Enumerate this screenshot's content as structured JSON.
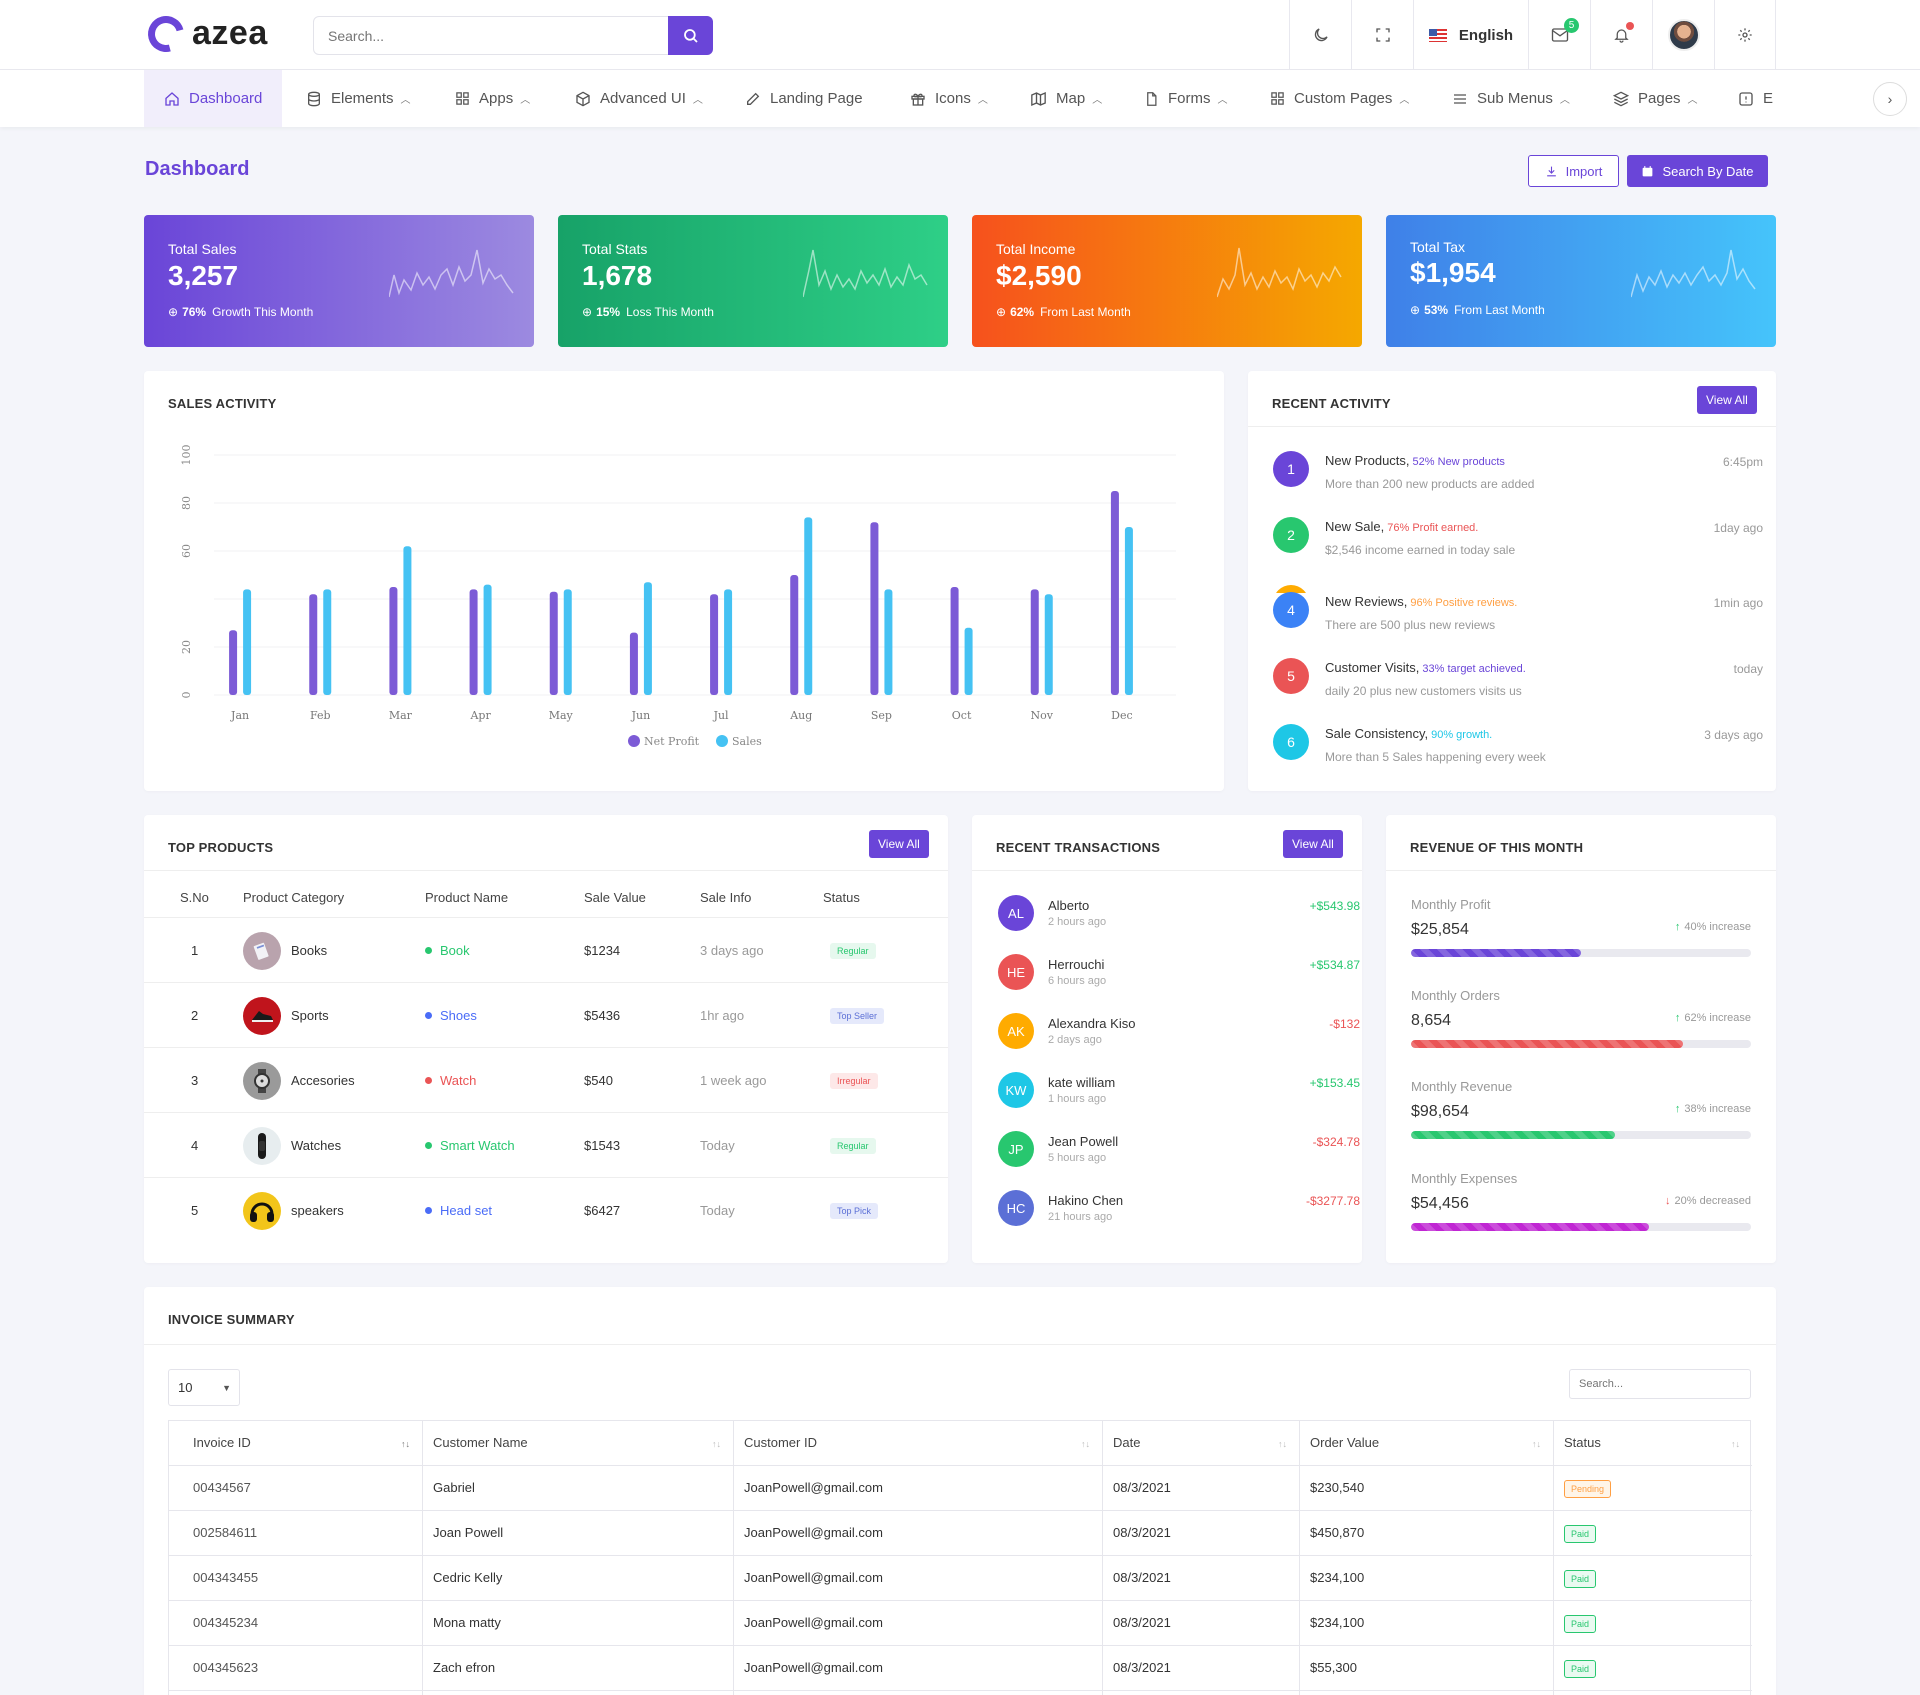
{
  "app": {
    "logo_text": "azea",
    "brand_color": "#6a45d8"
  },
  "header": {
    "search_placeholder": "Search...",
    "language": "English",
    "mail_count": "5",
    "icons": [
      "moon-icon",
      "fullscreen-icon",
      "flag-us-icon",
      "mail-icon",
      "bell-icon",
      "avatar",
      "gear-icon"
    ]
  },
  "nav": {
    "items": [
      {
        "label": "Dashboard",
        "icon": "home-icon"
      },
      {
        "label": "Elements",
        "icon": "database-icon"
      },
      {
        "label": "Apps",
        "icon": "grid-icon"
      },
      {
        "label": "Advanced UI",
        "icon": "box-icon"
      },
      {
        "label": "Landing Page",
        "icon": "edit-icon"
      },
      {
        "label": "Icons",
        "icon": "gift-icon"
      },
      {
        "label": "Map",
        "icon": "map-icon"
      },
      {
        "label": "Forms",
        "icon": "file-icon"
      },
      {
        "label": "Custom Pages",
        "icon": "grid-icon"
      },
      {
        "label": "Sub Menus",
        "icon": "menu-icon"
      },
      {
        "label": "Pages",
        "icon": "layers-icon"
      },
      {
        "label": "E",
        "icon": "info-icon"
      }
    ]
  },
  "page": {
    "title": "Dashboard",
    "import_label": "Import",
    "search_date_label": "Search By Date"
  },
  "stats": [
    {
      "label": "Total Sales",
      "value": "3,257",
      "pct": "76%",
      "note": "Growth This Month"
    },
    {
      "label": "Total Stats",
      "value": "1,678",
      "pct": "15%",
      "note": "Loss This Month"
    },
    {
      "label": "Total Income",
      "value": "$2,590",
      "pct": "62%",
      "note": "From Last Month"
    },
    {
      "label": "Total Tax",
      "value": "$1,954",
      "pct": "53%",
      "note": "From Last Month"
    }
  ],
  "sales_activity": {
    "title": "SALES ACTIVITY"
  },
  "chart_data": {
    "type": "bar",
    "categories": [
      "Jan",
      "Feb",
      "Mar",
      "Apr",
      "May",
      "Jun",
      "Jul",
      "Aug",
      "Sep",
      "Oct",
      "Nov",
      "Dec"
    ],
    "series": [
      {
        "name": "Net Profit",
        "color": "#7c5bd6",
        "values": [
          27,
          42,
          45,
          44,
          43,
          26,
          42,
          50,
          72,
          45,
          44,
          85
        ]
      },
      {
        "name": "Sales",
        "color": "#45c2f3",
        "values": [
          44,
          44,
          62,
          46,
          44,
          47,
          44,
          74,
          44,
          28,
          42,
          70
        ]
      }
    ],
    "yticks": [
      "0",
      "20",
      "60",
      "80",
      "100"
    ],
    "ylim": [
      0,
      100
    ],
    "legend": "bottom",
    "grid": true
  },
  "recent_activity": {
    "title": "RECENT ACTIVITY",
    "view_all": "View All",
    "items": [
      {
        "num": "1",
        "title": "New Products,",
        "highlight": "52% New products",
        "sub": "More than 200 new products are added",
        "time": "6:45pm",
        "color": "#6a45d8",
        "hcolor": "#6a45d8"
      },
      {
        "num": "2",
        "title": "New Sale,",
        "highlight": "76% Profit earned.",
        "sub": "$2,546 income earned in today sale",
        "time": "1day ago",
        "color": "#28c76f",
        "hcolor": "#ea5455"
      },
      {
        "num": "4",
        "title": "New Reviews,",
        "highlight": "96% Positive reviews.",
        "sub": "There are 500 plus new reviews",
        "time": "1min ago",
        "color": "#3b82f6",
        "hcolor": "#ff9f43"
      },
      {
        "num": "5",
        "title": "Customer Visits,",
        "highlight": "33% target achieved.",
        "sub": "daily 20 plus new customers visits us",
        "time": "today",
        "color": "#ea5455",
        "hcolor": "#6a45d8"
      },
      {
        "num": "6",
        "title": "Sale Consistency,",
        "highlight": "90% growth.",
        "sub": "More than 5 Sales happening every week",
        "time": "3 days ago",
        "color": "#1ec7e6",
        "hcolor": "#1ec7e6"
      }
    ]
  },
  "top_products": {
    "title": "TOP PRODUCTS",
    "view_all": "View All",
    "headers": [
      "S.No",
      "Product Category",
      "Product Name",
      "Sale Value",
      "Sale Info",
      "Status"
    ],
    "rows": [
      {
        "no": "1",
        "category": "Books",
        "name": "Book",
        "name_color": "#28c76f",
        "value": "$1234",
        "info": "3 days ago",
        "status": "Regular",
        "status_bg": "#e6f8ee",
        "status_fg": "#28c76f",
        "img_bg": "#b9a3ad"
      },
      {
        "no": "2",
        "category": "Sports",
        "name": "Shoes",
        "name_color": "#4a6cf7",
        "value": "$5436",
        "info": "1hr ago",
        "status": "Top Seller",
        "status_bg": "#e5e9fb",
        "status_fg": "#5b6fd6",
        "img_bg": "#c0141c"
      },
      {
        "no": "3",
        "category": "Accesories",
        "name": "Watch",
        "name_color": "#ea5455",
        "value": "$540",
        "info": "1 week ago",
        "status": "Irregular",
        "status_bg": "#fde8e8",
        "status_fg": "#ea5455",
        "img_bg": "#9a9a9a"
      },
      {
        "no": "4",
        "category": "Watches",
        "name": "Smart Watch",
        "name_color": "#28c76f",
        "value": "$1543",
        "info": "Today",
        "status": "Regular",
        "status_bg": "#e6f8ee",
        "status_fg": "#28c76f",
        "img_bg": "#e7edef"
      },
      {
        "no": "5",
        "category": "speakers",
        "name": "Head set",
        "name_color": "#4a6cf7",
        "value": "$6427",
        "info": "Today",
        "status": "Top Pick",
        "status_bg": "#e5e9fb",
        "status_fg": "#5b6fd6",
        "img_bg": "#f2c51a"
      }
    ]
  },
  "recent_transactions": {
    "title": "RECENT TRANSACTIONS",
    "view_all": "View All",
    "items": [
      {
        "initials": "AL",
        "name": "Alberto",
        "time": "2 hours ago",
        "amount": "+$543.98",
        "bg": "#6a45d8",
        "amt_color": "#28c76f"
      },
      {
        "initials": "HE",
        "name": "Herrouchi",
        "time": "6 hours ago",
        "amount": "+$534.87",
        "bg": "#ea5455",
        "amt_color": "#28c76f"
      },
      {
        "initials": "AK",
        "name": "Alexandra Kiso",
        "time": "2 days ago",
        "amount": "-$132",
        "bg": "#ffab00",
        "amt_color": "#ea5455"
      },
      {
        "initials": "KW",
        "name": "kate william",
        "time": "1 hours ago",
        "amount": "+$153.45",
        "bg": "#1ec7e6",
        "amt_color": "#28c76f"
      },
      {
        "initials": "JP",
        "name": "Jean Powell",
        "time": "5 hours ago",
        "amount": "-$324.78",
        "bg": "#28c76f",
        "amt_color": "#ea5455"
      },
      {
        "initials": "HC",
        "name": "Hakino Chen",
        "time": "21 hours ago",
        "amount": "-$3277.78",
        "bg": "#5b6fd6",
        "amt_color": "#ea5455"
      }
    ]
  },
  "revenue": {
    "title": "REVENUE OF THIS MONTH",
    "items": [
      {
        "label": "Monthly Profit",
        "value": "$25,854",
        "change": "40% increase",
        "arrow": "↑",
        "arrow_color": "#28c76f",
        "fill": 0.5,
        "color": "#6a45d8"
      },
      {
        "label": "Monthly Orders",
        "value": "8,654",
        "change": "62% increase",
        "arrow": "↑",
        "arrow_color": "#28c76f",
        "fill": 0.8,
        "color": "#ea5455"
      },
      {
        "label": "Monthly Revenue",
        "value": "$98,654",
        "change": "38% increase",
        "arrow": "↑",
        "arrow_color": "#28c76f",
        "fill": 0.6,
        "color": "#28c76f"
      },
      {
        "label": "Monthly Expenses",
        "value": "$54,456",
        "change": "20% decreased",
        "arrow": "↓",
        "arrow_color": "#ea5455",
        "fill": 0.7,
        "color": "#c026d3"
      }
    ]
  },
  "invoice": {
    "title": "INVOICE SUMMARY",
    "page_size": "10",
    "search_placeholder": "Search...",
    "headers": [
      "Invoice ID",
      "Customer Name",
      "Customer ID",
      "Date",
      "Order Value",
      "Status"
    ],
    "rows": [
      {
        "id": "00434567",
        "name": "Gabriel",
        "cid": "JoanPowell@gmail.com",
        "date": "08/3/2021",
        "value": "$230,540",
        "status": "Pending",
        "fg": "#ff9f43"
      },
      {
        "id": "002584611",
        "name": "Joan Powell",
        "cid": "JoanPowell@gmail.com",
        "date": "08/3/2021",
        "value": "$450,870",
        "status": "Paid",
        "fg": "#28c76f"
      },
      {
        "id": "004343455",
        "name": "Cedric Kelly",
        "cid": "JoanPowell@gmail.com",
        "date": "08/3/2021",
        "value": "$234,100",
        "status": "Paid",
        "fg": "#28c76f"
      },
      {
        "id": "004345234",
        "name": "Mona matty",
        "cid": "JoanPowell@gmail.com",
        "date": "08/3/2021",
        "value": "$234,100",
        "status": "Paid",
        "fg": "#28c76f"
      },
      {
        "id": "004345623",
        "name": "Zach efron",
        "cid": "JoanPowell@gmail.com",
        "date": "08/3/2021",
        "value": "$55,300",
        "status": "Paid",
        "fg": "#28c76f"
      }
    ]
  }
}
